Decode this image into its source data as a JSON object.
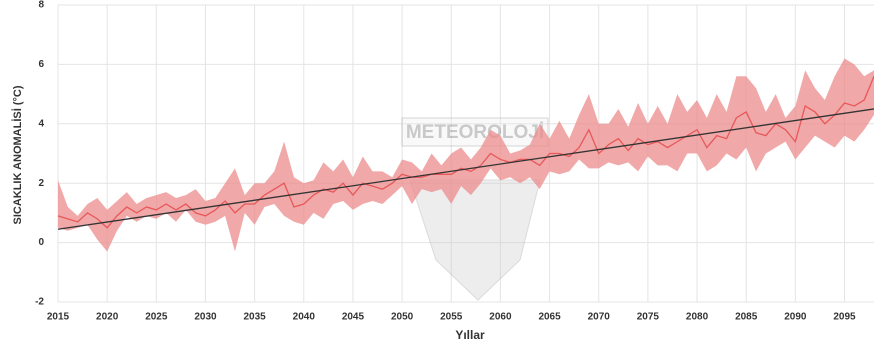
{
  "chart_data": {
    "type": "line",
    "ylabel": "SICAKLIK ANOMALİSİ (°C)",
    "xlabel": "Yıllar",
    "watermark": "METEOROLOJİ",
    "x": [
      2015,
      2016,
      2017,
      2018,
      2019,
      2020,
      2021,
      2022,
      2023,
      2024,
      2025,
      2026,
      2027,
      2028,
      2029,
      2030,
      2031,
      2032,
      2033,
      2034,
      2035,
      2036,
      2037,
      2038,
      2039,
      2040,
      2041,
      2042,
      2043,
      2044,
      2045,
      2046,
      2047,
      2048,
      2049,
      2050,
      2051,
      2052,
      2053,
      2054,
      2055,
      2056,
      2057,
      2058,
      2059,
      2060,
      2061,
      2062,
      2063,
      2064,
      2065,
      2066,
      2067,
      2068,
      2069,
      2070,
      2071,
      2072,
      2073,
      2074,
      2075,
      2076,
      2077,
      2078,
      2079,
      2080,
      2081,
      2082,
      2083,
      2084,
      2085,
      2086,
      2087,
      2088,
      2089,
      2090,
      2091,
      2092,
      2093,
      2094,
      2095,
      2096,
      2097,
      2098
    ],
    "band": {
      "color": "#eb8b8b",
      "upper": [
        2.1,
        1.2,
        0.9,
        1.3,
        1.5,
        1.1,
        1.4,
        1.7,
        1.3,
        1.5,
        1.6,
        1.7,
        1.5,
        1.6,
        1.8,
        1.4,
        1.5,
        2.0,
        2.5,
        1.6,
        2.0,
        2.0,
        2.4,
        3.4,
        2.2,
        2.0,
        2.1,
        2.7,
        2.4,
        2.8,
        2.2,
        2.9,
        2.4,
        2.4,
        2.2,
        2.8,
        2.7,
        2.4,
        3.0,
        2.6,
        3.0,
        3.2,
        2.8,
        3.2,
        3.8,
        3.6,
        3.0,
        3.1,
        3.3,
        4.0,
        3.5,
        4.1,
        3.5,
        4.3,
        5.0,
        4.0,
        4.0,
        4.5,
        3.9,
        4.7,
        4.0,
        4.6,
        4.0,
        5.0,
        4.4,
        4.8,
        4.2,
        5.0,
        4.4,
        5.6,
        5.6,
        5.2,
        4.4,
        5.0,
        4.2,
        4.6,
        5.8,
        5.2,
        4.8,
        5.6,
        6.2,
        6.0,
        5.6,
        5.8
      ],
      "lower": [
        0.5,
        0.4,
        0.5,
        0.6,
        0.1,
        -0.3,
        0.4,
        0.9,
        0.7,
        0.9,
        0.8,
        1.0,
        0.7,
        1.1,
        0.7,
        0.6,
        0.7,
        0.9,
        -0.3,
        1.0,
        0.6,
        1.2,
        1.3,
        0.9,
        0.7,
        0.6,
        1.0,
        0.8,
        1.3,
        1.4,
        1.1,
        1.3,
        1.4,
        1.3,
        1.6,
        1.9,
        1.3,
        1.8,
        1.7,
        1.8,
        1.3,
        1.9,
        1.6,
        2.0,
        2.5,
        2.1,
        2.2,
        2.0,
        2.2,
        1.8,
        2.4,
        2.3,
        2.4,
        2.8,
        2.5,
        2.5,
        2.7,
        2.6,
        2.7,
        2.4,
        2.9,
        2.6,
        2.6,
        2.4,
        3.0,
        3.0,
        2.4,
        2.6,
        3.0,
        2.8,
        3.2,
        2.4,
        3.0,
        3.2,
        3.4,
        2.8,
        3.2,
        3.6,
        3.4,
        3.2,
        3.6,
        3.4,
        3.8,
        4.3
      ]
    },
    "series": [
      {
        "color": "#e8585a",
        "values": [
          0.9,
          0.8,
          0.7,
          1.0,
          0.8,
          0.5,
          0.9,
          1.2,
          1.0,
          1.2,
          1.1,
          1.3,
          1.1,
          1.3,
          1.0,
          0.9,
          1.1,
          1.4,
          1.0,
          1.3,
          1.3,
          1.6,
          1.8,
          2.0,
          1.2,
          1.3,
          1.6,
          1.8,
          1.7,
          2.0,
          1.6,
          2.0,
          1.9,
          1.8,
          2.0,
          2.3,
          2.2,
          2.2,
          2.3,
          2.3,
          2.3,
          2.5,
          2.4,
          2.6,
          3.0,
          2.8,
          2.7,
          2.8,
          2.8,
          2.6,
          3.0,
          3.0,
          2.9,
          3.2,
          3.8,
          3.0,
          3.3,
          3.5,
          3.1,
          3.5,
          3.3,
          3.4,
          3.2,
          3.4,
          3.6,
          3.8,
          3.2,
          3.6,
          3.5,
          4.2,
          4.4,
          3.7,
          3.6,
          4.0,
          3.8,
          3.4,
          4.6,
          4.4,
          4.0,
          4.3,
          4.7,
          4.6,
          4.8,
          5.6
        ]
      }
    ],
    "trend": {
      "color": "#333333",
      "x": [
        2015,
        2098
      ],
      "values": [
        0.45,
        4.5
      ]
    },
    "xlim": [
      2015,
      2098
    ],
    "ylim": [
      -2,
      8
    ],
    "xticks": [
      2015,
      2020,
      2025,
      2030,
      2035,
      2040,
      2045,
      2050,
      2055,
      2060,
      2065,
      2070,
      2075,
      2080,
      2085,
      2090,
      2095
    ],
    "yticks": [
      -2,
      0,
      2,
      4,
      6,
      8
    ],
    "grid": true
  }
}
